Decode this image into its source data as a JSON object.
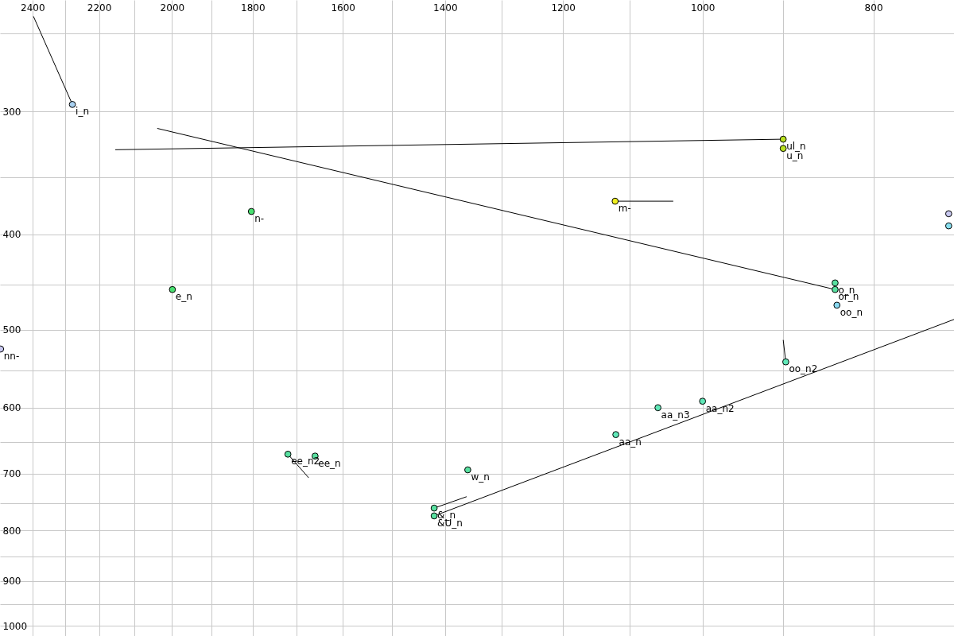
{
  "chart_data": {
    "type": "scatter",
    "log": "xy",
    "grid": true,
    "marker": "circle",
    "xlim": [
      2504,
      720
    ],
    "ylim": [
      1024,
      231
    ],
    "xticks": [
      2400,
      {
        "value": 2300,
        "label": null
      },
      2200,
      {
        "value": 2100,
        "label": null
      },
      2000,
      {
        "value": 1900,
        "label": null
      },
      1800,
      {
        "value": 1700,
        "label": null
      },
      1600,
      {
        "value": 1500,
        "label": null
      },
      1400,
      {
        "value": 1300,
        "label": null
      },
      1200,
      {
        "value": 1100,
        "label": null
      },
      1000,
      {
        "value": 900,
        "label": null
      },
      800
    ],
    "yticks": [
      {
        "value": 250,
        "label": null
      },
      300,
      {
        "value": 350,
        "label": null
      },
      400,
      {
        "value": 450,
        "label": null
      },
      500,
      {
        "value": 550,
        "label": null
      },
      600,
      {
        "value": 650,
        "label": null
      },
      700,
      {
        "value": 750,
        "label": null
      },
      800,
      {
        "value": 850,
        "label": null
      },
      900,
      {
        "value": 950,
        "label": null
      },
      1000
    ],
    "series": [
      {
        "type": "line",
        "marker": "none",
        "color": "#000000",
        "x": [
          2397,
          2278
        ],
        "values": [
          240,
          295
        ]
      },
      {
        "type": "line",
        "marker": "none",
        "color": "#000000",
        "x": [
          2154,
          900
        ],
        "values": [
          328,
          320
        ]
      },
      {
        "type": "line",
        "marker": "none",
        "color": "#000000",
        "x": [
          2039,
          841
        ],
        "values": [
          312,
          455
        ]
      },
      {
        "type": "line",
        "marker": "none",
        "color": "#000000",
        "x": [
          1121,
          1039
        ],
        "values": [
          370,
          370
        ]
      },
      {
        "type": "line",
        "marker": "none",
        "color": "#000000",
        "x": [
          900,
          897
        ],
        "values": [
          512,
          539
        ]
      },
      {
        "type": "line",
        "marker": "none",
        "color": "#000000",
        "x": [
          1719,
          1673
        ],
        "values": [
          669,
          707
        ]
      },
      {
        "type": "line",
        "marker": "none",
        "color": "#000000",
        "x": [
          1420,
          1361
        ],
        "values": [
          759,
          739
        ]
      },
      {
        "type": "line",
        "marker": "none",
        "color": "#000000",
        "x": [
          1420,
          720
        ],
        "values": [
          773,
          488
        ]
      },
      {
        "name": "i_n",
        "color": "#a8d0f0",
        "x": [
          2278
        ],
        "values": [
          295
        ]
      },
      {
        "name": "nn-",
        "color": "#c8c8f0",
        "x": [
          2502
        ],
        "values": [
          523
        ]
      },
      {
        "name": "e_n",
        "color": "#48e070",
        "x": [
          1999
        ],
        "values": [
          455
        ]
      },
      {
        "name": "n-",
        "color": "#48e070",
        "x": [
          1803
        ],
        "values": [
          379
        ]
      },
      {
        "name": "ul_n",
        "color": "#b8e020",
        "x": [
          900
        ],
        "values": [
          320
        ]
      },
      {
        "name": "u_n",
        "color": "#b8e020",
        "x": [
          900
        ],
        "values": [
          327
        ]
      },
      {
        "name": "m-",
        "color": "#f0f020",
        "x": [
          1121
        ],
        "values": [
          370
        ]
      },
      {
        "name": "o_n",
        "color": "#58e0a0",
        "x": [
          841
        ],
        "values": [
          448
        ]
      },
      {
        "name": "or_n",
        "color": "#58e0a0",
        "x": [
          841
        ],
        "values": [
          455
        ]
      },
      {
        "name": "oo_n",
        "color": "#88d8f0",
        "x": [
          839
        ],
        "values": [
          472
        ]
      },
      {
        "name": "oo_n2",
        "color": "#60e8b8",
        "x": [
          897
        ],
        "values": [
          539
        ]
      },
      {
        "name": "aa_n3",
        "color": "#60e8b8",
        "x": [
          1060
        ],
        "values": [
          600
        ]
      },
      {
        "name": "aa_n2",
        "color": "#60e8b8",
        "x": [
          1000
        ],
        "values": [
          591
        ]
      },
      {
        "name": "aa_n",
        "color": "#60e8b8",
        "x": [
          1120
        ],
        "values": [
          639
        ]
      },
      {
        "name": "ee_n2",
        "color": "#58e0a0",
        "x": [
          1719
        ],
        "values": [
          669
        ]
      },
      {
        "name": "ee_n",
        "color": "#58e0a0",
        "x": [
          1659
        ],
        "values": [
          672
        ]
      },
      {
        "name": "w_n",
        "color": "#58e0a0",
        "x": [
          1359
        ],
        "values": [
          694
        ]
      },
      {
        "name": "&_n",
        "color": "#58e0a0",
        "x": [
          1420
        ],
        "values": [
          759
        ]
      },
      {
        "name": "&U_n",
        "color": "#58e0a0",
        "x": [
          1420
        ],
        "values": [
          773
        ]
      },
      {
        "color": "#c8c8f0",
        "x": [
          725
        ],
        "values": [
          381
        ]
      },
      {
        "color": "#88e0f0",
        "x": [
          725
        ],
        "values": [
          392
        ]
      }
    ]
  }
}
